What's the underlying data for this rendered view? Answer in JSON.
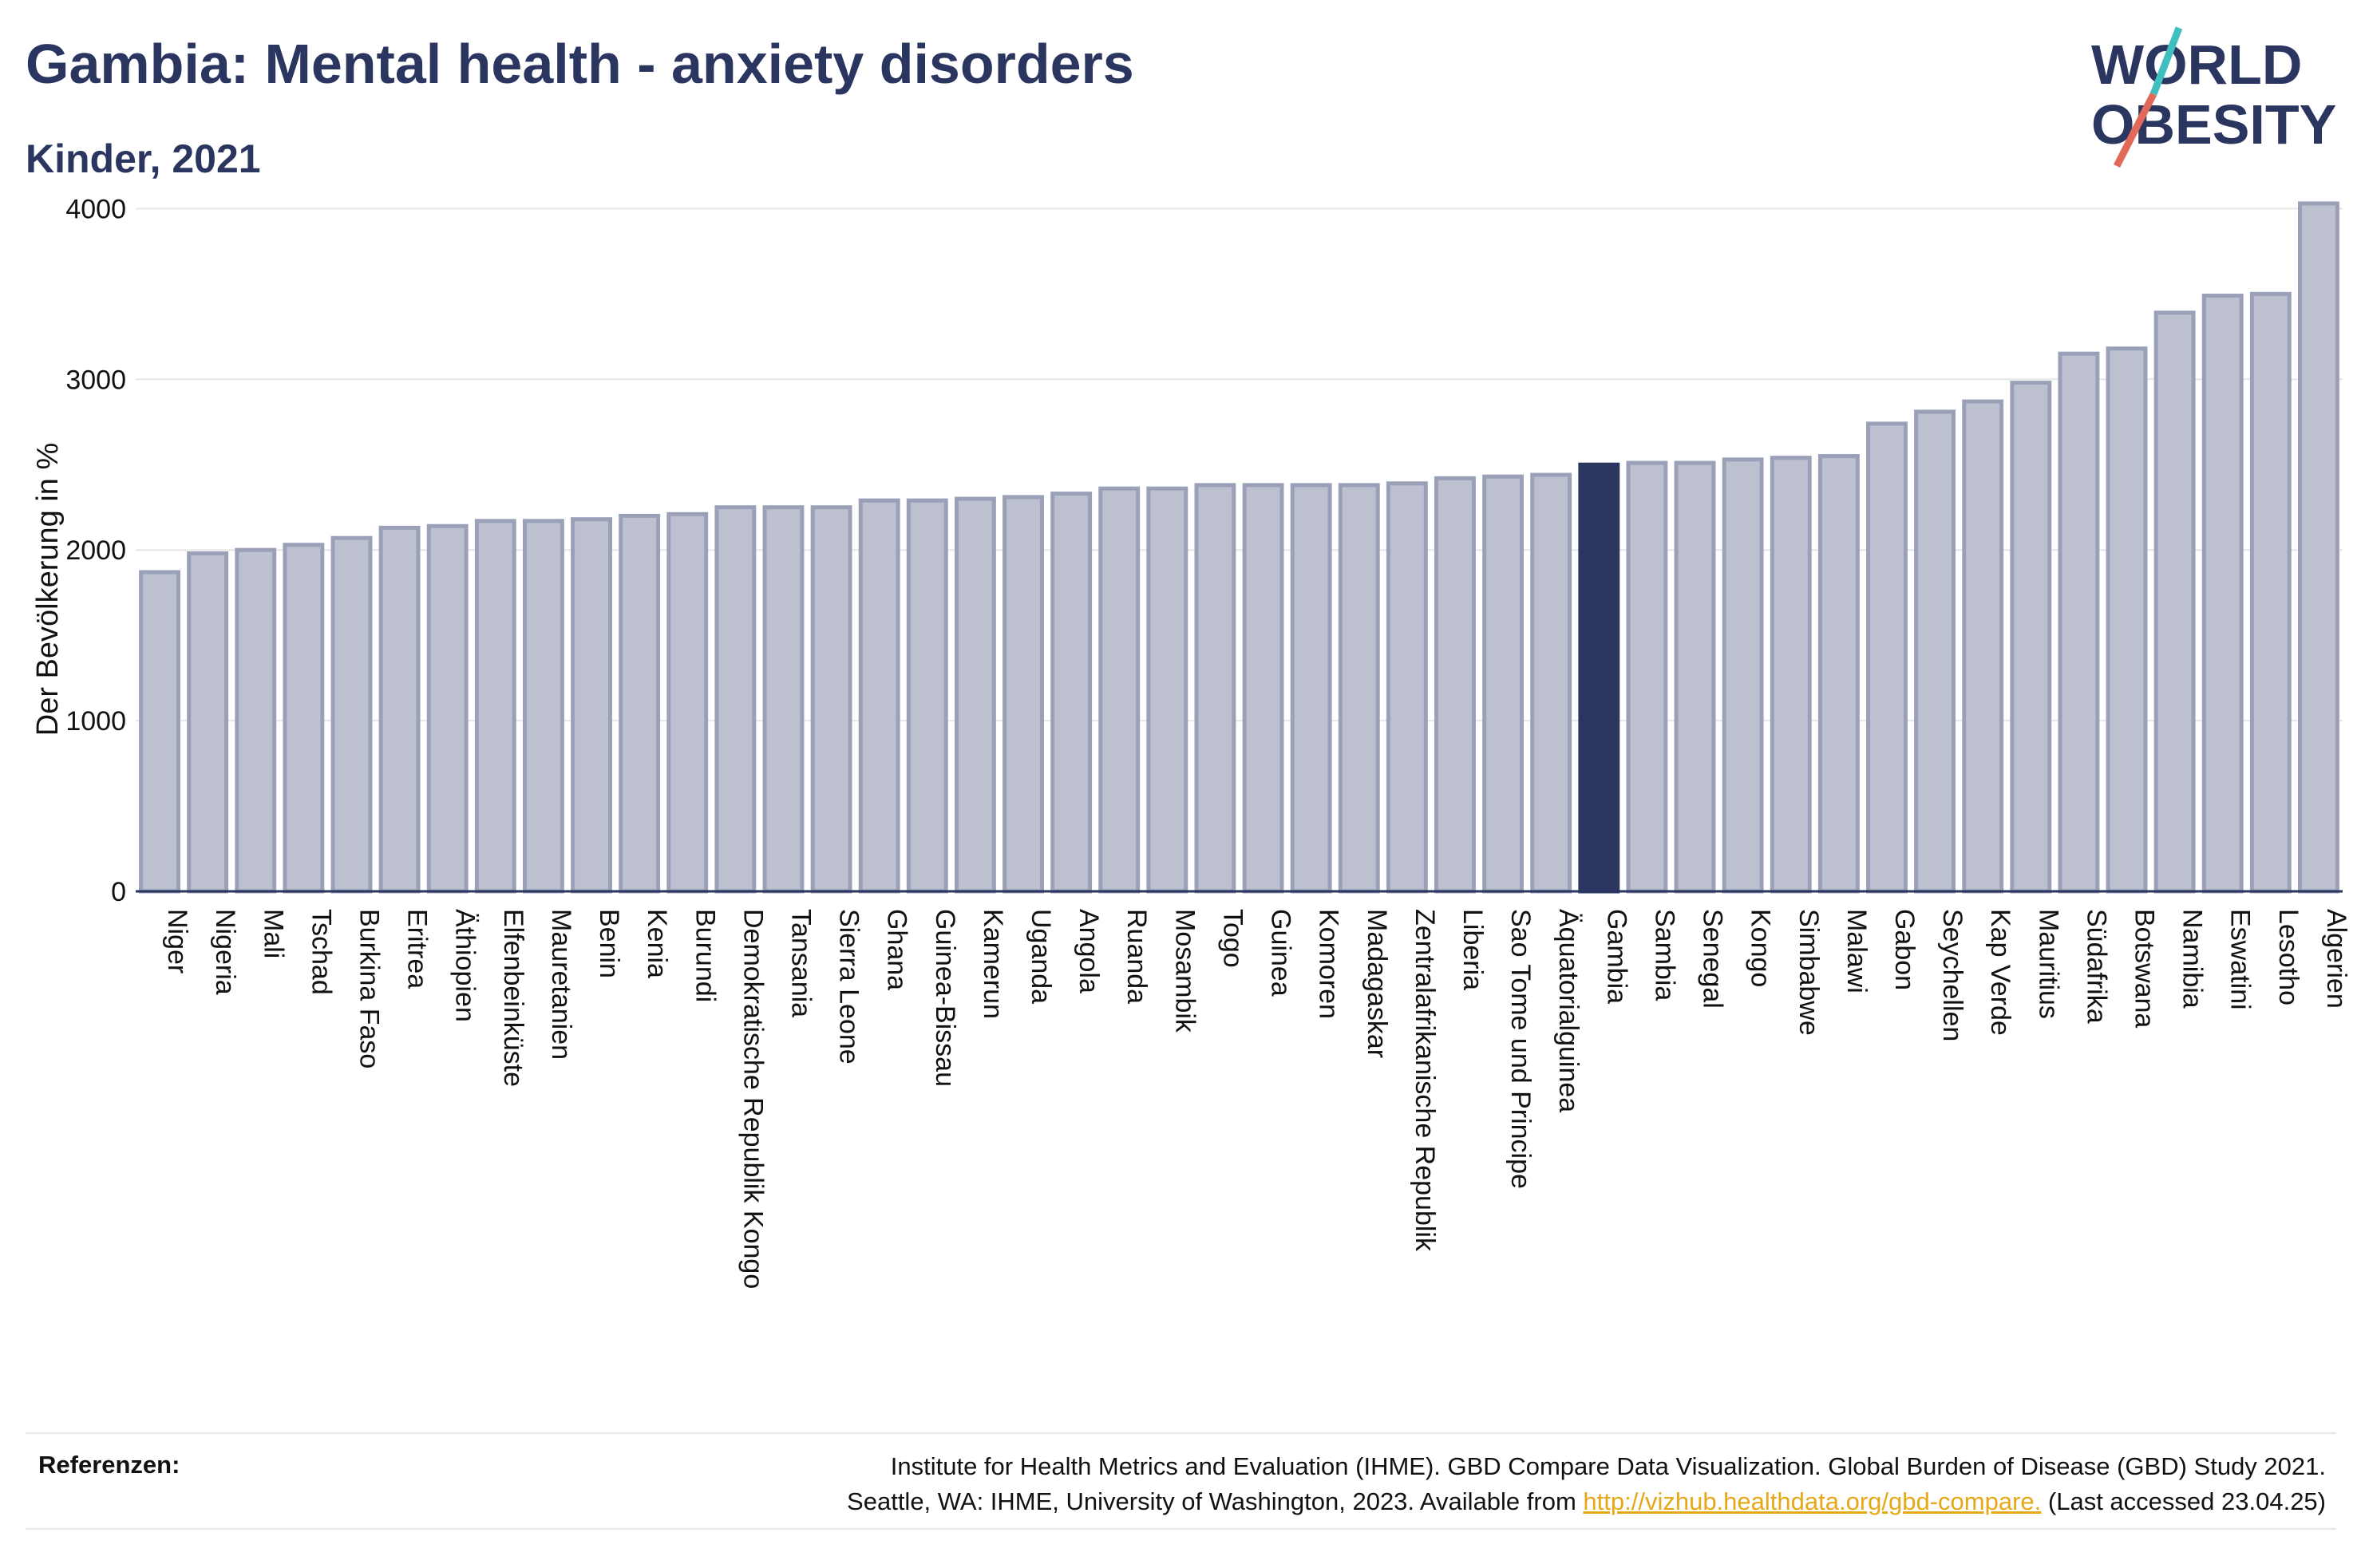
{
  "header": {
    "title": "Gambia: Mental health - anxiety disorders",
    "subtitle": "Kinder, 2021"
  },
  "logo": {
    "line1": "WORLD",
    "line2": "OBESITY",
    "colors": {
      "text": "#2a3560",
      "slash_teal": "#3fbfbf",
      "slash_red": "#e2685a"
    }
  },
  "chart_data": {
    "type": "bar",
    "ylabel": "Der Bevölkerung in %",
    "xlabel": "",
    "ylim": [
      0,
      4100
    ],
    "yticks": [
      0,
      1000,
      2000,
      3000,
      4000
    ],
    "grid": true,
    "highlight": "Gambia",
    "colors": {
      "bar": "#bcc0cf",
      "bar_edge": "#9aa0b8",
      "highlight": "#2a3560"
    },
    "categories": [
      "Niger",
      "Nigeria",
      "Mali",
      "Tschad",
      "Burkina Faso",
      "Eritrea",
      "Äthiopien",
      "Elfenbeinküste",
      "Mauretanien",
      "Benin",
      "Kenia",
      "Burundi",
      "Demokratische Republik Kongo",
      "Tansania",
      "Sierra Leone",
      "Ghana",
      "Guinea-Bissau",
      "Kamerun",
      "Uganda",
      "Angola",
      "Ruanda",
      "Mosambik",
      "Togo",
      "Guinea",
      "Komoren",
      "Madagaskar",
      "Zentralafrikanische Republik",
      "Liberia",
      "Sao Tome und Principe",
      "Äquatorialguinea",
      "Gambia",
      "Sambia",
      "Senegal",
      "Kongo",
      "Simbabwe",
      "Malawi",
      "Gabon",
      "Seychellen",
      "Kap Verde",
      "Mauritius",
      "Südafrika",
      "Botswana",
      "Namibia",
      "Eswatini",
      "Lesotho",
      "Algerien"
    ],
    "values": [
      1870,
      1980,
      2000,
      2030,
      2070,
      2130,
      2140,
      2170,
      2170,
      2180,
      2200,
      2210,
      2250,
      2250,
      2250,
      2290,
      2290,
      2300,
      2310,
      2330,
      2360,
      2360,
      2380,
      2380,
      2380,
      2380,
      2390,
      2420,
      2430,
      2440,
      2500,
      2510,
      2510,
      2530,
      2540,
      2550,
      2740,
      2810,
      2870,
      2980,
      3150,
      3180,
      3390,
      3490,
      3500,
      4030
    ]
  },
  "references": {
    "label": "Referenzen:",
    "line1": "Institute for Health Metrics and Evaluation (IHME). GBD Compare Data Visualization. Global Burden of Disease (GBD) Study 2021.",
    "line2_prefix": "Seattle, WA: IHME, University of Washington, 2023. Available from ",
    "link": "http://vizhub.healthdata.org/gbd-compare.",
    "line2_suffix": " (Last accessed 23.04.25)"
  }
}
